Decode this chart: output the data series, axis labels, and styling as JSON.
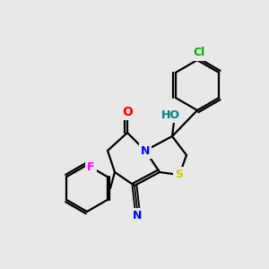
{
  "background_color": "#e8e8e8",
  "bond_color": "#000000",
  "atom_colors": {
    "N": "#0000ff",
    "O": "#ff0000",
    "S": "#cccc00",
    "F": "#ff00ff",
    "Cl": "#00aa00",
    "C_cyan": "#0000ff",
    "H": "#008080"
  },
  "figsize": [
    3.0,
    3.0
  ],
  "dpi": 100
}
